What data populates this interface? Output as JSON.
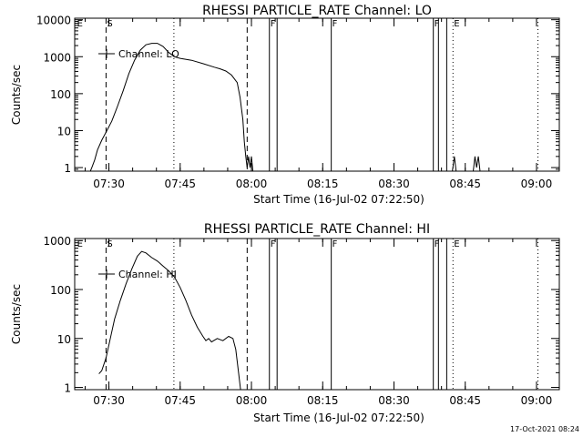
{
  "footer": {
    "timestamp": "17-Oct-2021 08:24"
  },
  "chart_data": [
    {
      "type": "line",
      "title": "RHESSI PARTICLE_RATE Channel: LO",
      "xlabel": "Start Time (16-Jul-02 07:22:50)",
      "ylabel": "Counts/sec",
      "y_scale": "log",
      "xlim": [
        7.38,
        9.08
      ],
      "ylim": [
        0.8,
        11000
      ],
      "x_ticks": [
        {
          "v": 7.5,
          "label": "07:30"
        },
        {
          "v": 7.75,
          "label": "07:45"
        },
        {
          "v": 8.0,
          "label": "08:00"
        },
        {
          "v": 8.25,
          "label": "08:15"
        },
        {
          "v": 8.5,
          "label": "08:30"
        },
        {
          "v": 8.75,
          "label": "08:45"
        },
        {
          "v": 9.0,
          "label": "09:00"
        }
      ],
      "y_ticks": [
        {
          "v": 1,
          "label": "1"
        },
        {
          "v": 10,
          "label": "10"
        },
        {
          "v": 100,
          "label": "100"
        },
        {
          "v": 1000,
          "label": "1000"
        },
        {
          "v": 10000,
          "label": "10000"
        }
      ],
      "legend": {
        "label": "Channel: LO",
        "position": "top-left"
      },
      "markers": [
        {
          "label": "E",
          "time": 7.385,
          "style": "none"
        },
        {
          "label": "S",
          "time": 7.49,
          "style": "dashed"
        },
        {
          "label": "",
          "time": 7.728,
          "style": "dotted"
        },
        {
          "label": "",
          "time": 7.985,
          "style": "dashed"
        },
        {
          "label": "F",
          "time": 8.063,
          "style": "solid"
        },
        {
          "label": "",
          "time": 8.09,
          "style": "solid"
        },
        {
          "label": "F",
          "time": 8.28,
          "style": "solid"
        },
        {
          "label": "F",
          "time": 8.638,
          "style": "solid"
        },
        {
          "label": "",
          "time": 8.656,
          "style": "solid"
        },
        {
          "label": "",
          "time": 8.685,
          "style": "solid"
        },
        {
          "label": "E",
          "time": 8.707,
          "style": "dotted"
        },
        {
          "label": "",
          "time": 9.005,
          "style": "dotted"
        }
      ],
      "series": [
        {
          "name": "Channel: LO",
          "points": [
            [
              7.435,
              0.8
            ],
            [
              7.44,
              1.0
            ],
            [
              7.45,
              1.6
            ],
            [
              7.46,
              3.0
            ],
            [
              7.475,
              5.5
            ],
            [
              7.49,
              9.0
            ],
            [
              7.51,
              18
            ],
            [
              7.53,
              45
            ],
            [
              7.55,
              120
            ],
            [
              7.57,
              350
            ],
            [
              7.59,
              800
            ],
            [
              7.61,
              1500
            ],
            [
              7.63,
              2100
            ],
            [
              7.65,
              2300
            ],
            [
              7.67,
              2300
            ],
            [
              7.69,
              1900
            ],
            [
              7.71,
              1300
            ],
            [
              7.73,
              1000
            ],
            [
              7.75,
              900
            ],
            [
              7.79,
              800
            ],
            [
              7.83,
              650
            ],
            [
              7.87,
              520
            ],
            [
              7.89,
              470
            ],
            [
              7.91,
              410
            ],
            [
              7.93,
              320
            ],
            [
              7.95,
              200
            ],
            [
              7.96,
              80
            ],
            [
              7.97,
              20
            ],
            [
              7.975,
              5
            ],
            [
              7.98,
              2
            ],
            [
              7.985,
              1.0
            ],
            [
              7.99,
              2
            ],
            [
              7.995,
              1.0
            ],
            [
              8.0,
              2
            ],
            [
              8.005,
              0.8
            ]
          ]
        },
        {
          "name": "Channel: LO",
          "points": [
            [
              8.705,
              0.8
            ],
            [
              8.712,
              2.0
            ],
            [
              8.718,
              0.8
            ]
          ]
        },
        {
          "name": "Channel: LO",
          "points": [
            [
              8.778,
              0.8
            ],
            [
              8.784,
              2.0
            ],
            [
              8.79,
              1.0
            ],
            [
              8.796,
              2.0
            ],
            [
              8.802,
              0.8
            ]
          ]
        }
      ]
    },
    {
      "type": "line",
      "title": "RHESSI PARTICLE_RATE Channel: HI",
      "xlabel": "Start Time (16-Jul-02 07:22:50)",
      "ylabel": "Counts/sec",
      "y_scale": "log",
      "xlim": [
        7.38,
        9.08
      ],
      "ylim": [
        0.9,
        1100
      ],
      "x_ticks": [
        {
          "v": 7.5,
          "label": "07:30"
        },
        {
          "v": 7.75,
          "label": "07:45"
        },
        {
          "v": 8.0,
          "label": "08:00"
        },
        {
          "v": 8.25,
          "label": "08:15"
        },
        {
          "v": 8.5,
          "label": "08:30"
        },
        {
          "v": 8.75,
          "label": "08:45"
        },
        {
          "v": 9.0,
          "label": "09:00"
        }
      ],
      "y_ticks": [
        {
          "v": 1,
          "label": "1"
        },
        {
          "v": 10,
          "label": "10"
        },
        {
          "v": 100,
          "label": "100"
        },
        {
          "v": 1000,
          "label": "1000"
        }
      ],
      "legend": {
        "label": "Channel: HI",
        "position": "top-left"
      },
      "markers": [
        {
          "label": "E",
          "time": 7.385,
          "style": "none"
        },
        {
          "label": "S",
          "time": 7.49,
          "style": "dashed"
        },
        {
          "label": "",
          "time": 7.728,
          "style": "dotted"
        },
        {
          "label": "",
          "time": 7.985,
          "style": "dashed"
        },
        {
          "label": "F",
          "time": 8.063,
          "style": "solid"
        },
        {
          "label": "",
          "time": 8.09,
          "style": "solid"
        },
        {
          "label": "F",
          "time": 8.28,
          "style": "solid"
        },
        {
          "label": "F",
          "time": 8.638,
          "style": "solid"
        },
        {
          "label": "",
          "time": 8.656,
          "style": "solid"
        },
        {
          "label": "",
          "time": 8.685,
          "style": "solid"
        },
        {
          "label": "E",
          "time": 8.707,
          "style": "dotted"
        },
        {
          "label": "",
          "time": 9.005,
          "style": "dotted"
        }
      ],
      "series": [
        {
          "name": "Channel: HI",
          "points": [
            [
              7.465,
              1.9
            ],
            [
              7.475,
              2.2
            ],
            [
              7.49,
              4
            ],
            [
              7.505,
              10
            ],
            [
              7.52,
              25
            ],
            [
              7.54,
              60
            ],
            [
              7.56,
              130
            ],
            [
              7.58,
              260
            ],
            [
              7.6,
              480
            ],
            [
              7.615,
              600
            ],
            [
              7.63,
              560
            ],
            [
              7.65,
              450
            ],
            [
              7.67,
              380
            ],
            [
              7.69,
              300
            ],
            [
              7.71,
              240
            ],
            [
              7.73,
              180
            ],
            [
              7.75,
              110
            ],
            [
              7.77,
              60
            ],
            [
              7.79,
              30
            ],
            [
              7.81,
              17
            ],
            [
              7.83,
              11
            ],
            [
              7.84,
              9
            ],
            [
              7.85,
              10
            ],
            [
              7.86,
              8.5
            ],
            [
              7.88,
              10
            ],
            [
              7.9,
              9
            ],
            [
              7.92,
              11
            ],
            [
              7.935,
              10
            ],
            [
              7.945,
              6
            ],
            [
              7.955,
              2
            ],
            [
              7.962,
              0.9
            ]
          ]
        }
      ]
    }
  ]
}
